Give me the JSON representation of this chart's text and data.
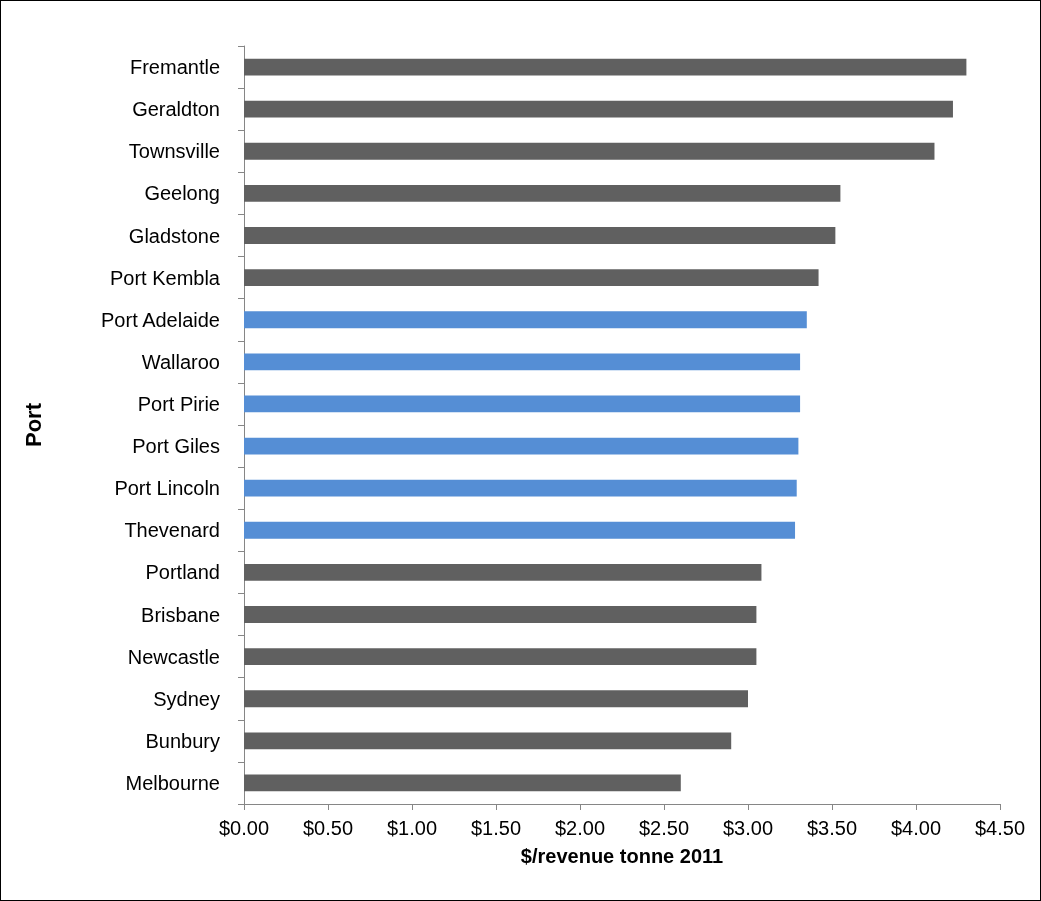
{
  "chart_data": {
    "type": "bar",
    "orientation": "horizontal",
    "xlabel": "$/revenue tonne 2011",
    "ylabel": "Port",
    "categories": [
      "Fremantle",
      "Geraldton",
      "Townsville",
      "Geelong",
      "Gladstone",
      "Port Kembla",
      "Port Adelaide",
      "Wallaroo",
      "Port Pirie",
      "Port Giles",
      "Port Lincoln",
      "Thevenard",
      "Portland",
      "Brisbane",
      "Newcastle",
      "Sydney",
      "Bunbury",
      "Melbourne"
    ],
    "values": [
      4.3,
      4.22,
      4.11,
      3.55,
      3.52,
      3.42,
      3.35,
      3.31,
      3.31,
      3.3,
      3.29,
      3.28,
      3.08,
      3.05,
      3.05,
      3.0,
      2.9,
      2.6
    ],
    "colors": [
      "#606060",
      "#606060",
      "#606060",
      "#606060",
      "#606060",
      "#606060",
      "#558ed5",
      "#558ed5",
      "#558ed5",
      "#558ed5",
      "#558ed5",
      "#558ed5",
      "#606060",
      "#606060",
      "#606060",
      "#606060",
      "#606060",
      "#606060"
    ],
    "xlim": [
      0,
      4.5
    ],
    "xticks": [
      {
        "value": 0,
        "label": "$0.00"
      },
      {
        "value": 0.5,
        "label": "$0.50"
      },
      {
        "value": 1,
        "label": "$1.00"
      },
      {
        "value": 1.5,
        "label": "$1.50"
      },
      {
        "value": 2,
        "label": "$2.00"
      },
      {
        "value": 2.5,
        "label": "$2.50"
      },
      {
        "value": 3,
        "label": "$3.00"
      },
      {
        "value": 3.5,
        "label": "$3.50"
      },
      {
        "value": 4,
        "label": "$4.00"
      },
      {
        "value": 4.5,
        "label": "$4.50"
      }
    ],
    "data_labels": false
  }
}
